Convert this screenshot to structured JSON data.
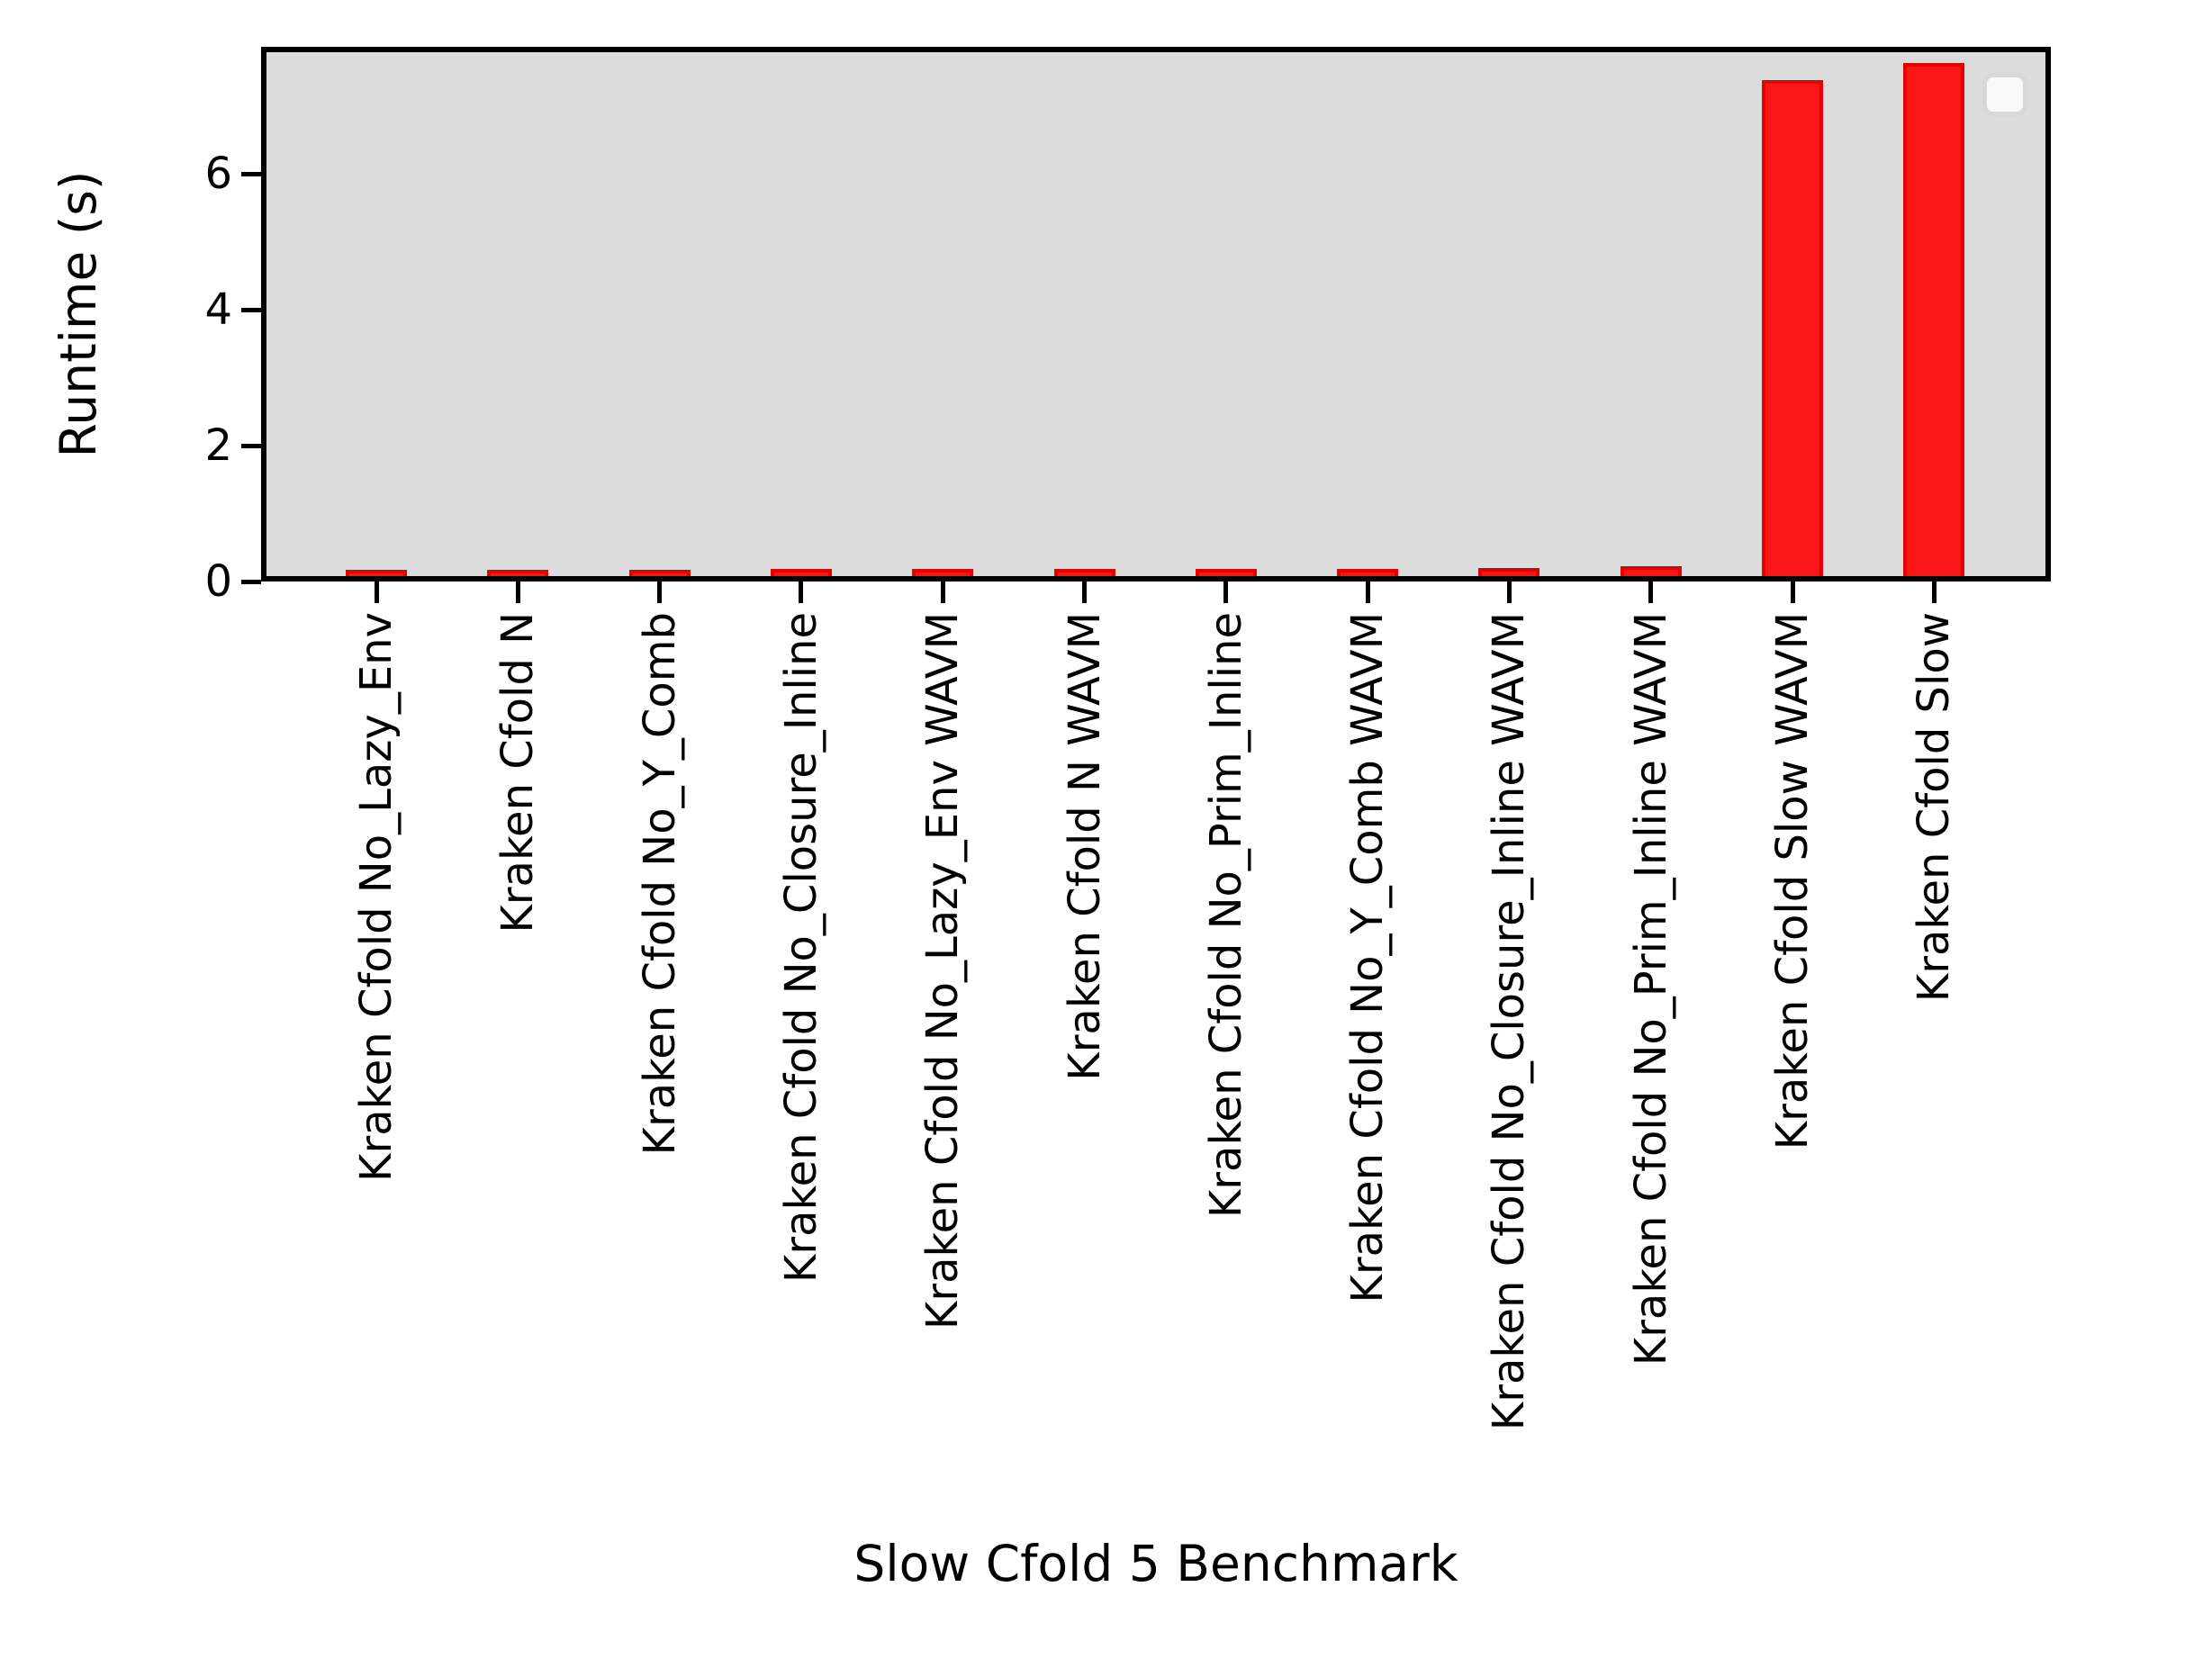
{
  "figure": {
    "background": "#ffffff"
  },
  "chart_data": {
    "type": "bar",
    "title": "",
    "xlabel": "Slow Cfold 5 Benchmark",
    "ylabel": "Runtime (s)",
    "categories": [
      "Kraken Cfold No_Lazy_Env",
      "Kraken Cfold N",
      "Kraken Cfold No_Y_Comb",
      "Kraken Cfold No_Closure_Inline",
      "Kraken Cfold No_Lazy_Env WAVM",
      "Kraken Cfold N WAVM",
      "Kraken Cfold No_Prim_Inline",
      "Kraken Cfold No_Y_Comb WAVM",
      "Kraken Cfold No_Closure_Inline WAVM",
      "Kraken Cfold No_Prim_Inline WAVM",
      "Kraken Cfold Slow WAVM",
      "Kraken Cfold Slow"
    ],
    "values": [
      0.04,
      0.04,
      0.04,
      0.05,
      0.055,
      0.055,
      0.055,
      0.055,
      0.065,
      0.09,
      7.25,
      7.5
    ],
    "yticks": [
      0,
      2,
      4,
      6
    ],
    "ylim": [
      0,
      7.85
    ],
    "xtick_rotation": 90,
    "grid": false,
    "legend": {
      "visible": true,
      "entries": [],
      "position": "upper-right"
    },
    "colors": {
      "bar_fill": "#f81616",
      "bar_edge": "#e60000",
      "plot_background": "#dcdcdc",
      "axis": "#000000",
      "text": "#000000",
      "legend_border": "#d8d8d8",
      "legend_fill": "#f9f9f9"
    }
  }
}
